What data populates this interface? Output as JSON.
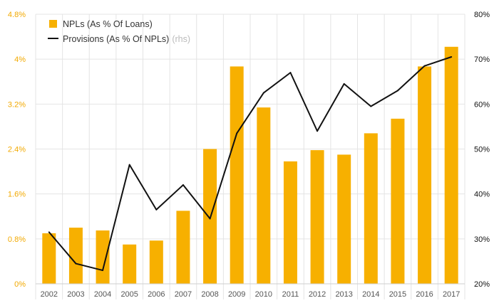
{
  "chart_data": {
    "type": "bar",
    "categories": [
      "2002",
      "2003",
      "2004",
      "2005",
      "2006",
      "2007",
      "2008",
      "2009",
      "2010",
      "2011",
      "2012",
      "2013",
      "2014",
      "2015",
      "2016",
      "2017"
    ],
    "series": [
      {
        "name": "NPLs (As % Of Loans)",
        "type": "bar",
        "axis": "left",
        "color": "#f7b000",
        "values": [
          0.9,
          1.0,
          0.95,
          0.7,
          0.77,
          1.3,
          2.4,
          3.87,
          3.14,
          2.18,
          2.38,
          2.3,
          2.68,
          2.94,
          3.87,
          4.22
        ]
      },
      {
        "name": "Provisions (As % Of NPLs)",
        "name_suffix": "(rhs)",
        "type": "line",
        "axis": "right",
        "color": "#111111",
        "values": [
          31.5,
          24.5,
          23.0,
          46.5,
          36.5,
          42.0,
          34.5,
          53.5,
          62.5,
          67.0,
          54.0,
          64.5,
          59.5,
          63.0,
          68.5,
          70.5
        ]
      }
    ],
    "y_left": {
      "ylim": [
        0,
        4.8
      ],
      "ticks": [
        "0%",
        "0.8%",
        "1.6%",
        "2.4%",
        "3.2%",
        "4%",
        "4.8%"
      ],
      "tick_values": [
        0,
        0.8,
        1.6,
        2.4,
        3.2,
        4.0,
        4.8
      ],
      "color": "#f2a900"
    },
    "y_right": {
      "ylim": [
        20,
        80
      ],
      "ticks": [
        "20%",
        "30%",
        "40%",
        "50%",
        "60%",
        "70%",
        "80%"
      ],
      "tick_values": [
        20,
        30,
        40,
        50,
        60,
        70,
        80
      ],
      "color": "#111111"
    },
    "grid": true,
    "grid_color": "#e4e4e4",
    "legend_position": "top-left",
    "title": "",
    "xlabel": "",
    "ylabel": ""
  }
}
